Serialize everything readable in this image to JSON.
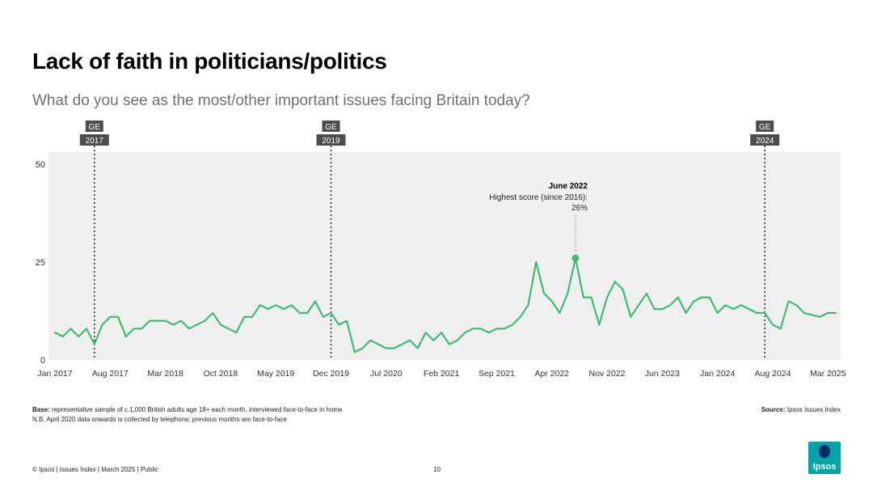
{
  "title": "Lack of faith in politicians/politics",
  "subtitle": "What do you see as the most/other important issues facing Britain today?",
  "chart_data": {
    "type": "line",
    "series_name": "Lack of faith in politicians/politics",
    "ylim": [
      0,
      50
    ],
    "yticks": [
      0,
      25,
      50
    ],
    "x_tick_labels": [
      "Jan 2017",
      "Aug 2017",
      "Mar 2018",
      "Oct 2018",
      "May 2019",
      "Dec 2019",
      "Jul 2020",
      "Feb 2021",
      "Sep 2021",
      "Apr 2022",
      "Nov 2022",
      "Jun 2023",
      "Jan 2024",
      "Aug 2024",
      "Mar 2025"
    ],
    "start": "Jan 2017",
    "end": "Mar 2025",
    "values": [
      7,
      6,
      8,
      6,
      8,
      4,
      9,
      11,
      11,
      6,
      8,
      8,
      10,
      10,
      10,
      9,
      10,
      8,
      9,
      10,
      12,
      9,
      8,
      7,
      11,
      11,
      14,
      13,
      14,
      13,
      14,
      12,
      12,
      15,
      11,
      12,
      9,
      10,
      2,
      3,
      5,
      4,
      3,
      3,
      4,
      5,
      3,
      7,
      5,
      7,
      4,
      5,
      7,
      8,
      8,
      7,
      8,
      8,
      9,
      11,
      14,
      25,
      17,
      15,
      12,
      17,
      26,
      16,
      16,
      9,
      16,
      20,
      18,
      11,
      14,
      17,
      13,
      13,
      14,
      16,
      12,
      15,
      16,
      16,
      12,
      14,
      13,
      14,
      13,
      12,
      12,
      9,
      8,
      15,
      14,
      12,
      11.5,
      11,
      12,
      12
    ],
    "annotations": [
      {
        "text_top": "GE",
        "text_bottom": "2017",
        "month_index": 5
      },
      {
        "text_top": "GE",
        "text_bottom": "2019",
        "month_index": 35
      },
      {
        "text_top": "GE",
        "text_bottom": "2024",
        "month_index": 90
      }
    ],
    "highlight": {
      "month_index": 66,
      "value": 26,
      "label_title": "June 2022",
      "label_line1": "Highest score (since 2016):",
      "label_line2": "26%"
    },
    "colors": {
      "line": "#3dbd72",
      "plot_bg": "#efefef",
      "annotation_bg": "#4d4d4d"
    }
  },
  "footer": {
    "base_label": "Base:",
    "base_text": "representative sample of c.1,000 British adults age 18+ each month, interviewed face-to-face in home",
    "note": "N.B. April 2020 data onwards is collected by telephone; previous months are face-to-face",
    "source_label": "Source:",
    "source_text": "Ipsos Issues Index",
    "copyright": "© Ipsos | Issues Index | March 2025 | Public",
    "page_number": "10",
    "logo_text": "Ipsos"
  }
}
